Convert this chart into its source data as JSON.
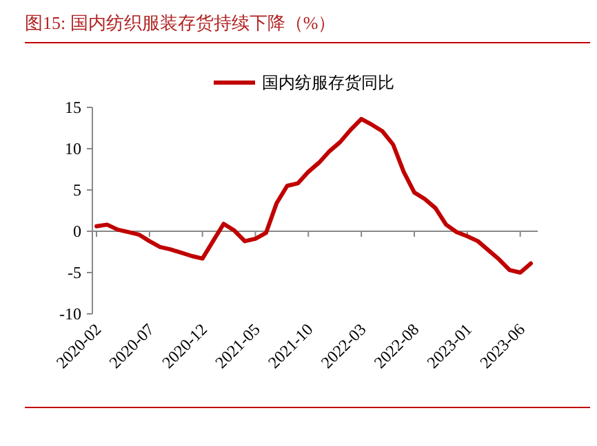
{
  "chart_data": {
    "type": "line",
    "title": "图15:    国内纺织服装存货持续下降（%）",
    "categories": [
      "2020-02",
      null,
      null,
      null,
      null,
      "2020-07",
      null,
      null,
      null,
      null,
      "2020-12",
      null,
      null,
      null,
      null,
      "2021-05",
      null,
      null,
      null,
      null,
      "2021-10",
      null,
      null,
      null,
      null,
      "2022-03",
      null,
      null,
      null,
      null,
      "2022-08",
      null,
      null,
      null,
      null,
      "2023-01",
      null,
      null,
      null,
      null,
      "2023-06",
      null
    ],
    "series": [
      {
        "name": "国内纺服存货同比",
        "color": "#c00000",
        "values": [
          0.6,
          0.8,
          0.2,
          -0.1,
          -0.4,
          -1.2,
          -1.9,
          -2.2,
          -2.6,
          -3.0,
          -3.3,
          -1.2,
          0.9,
          0.1,
          -1.2,
          -0.9,
          -0.2,
          3.4,
          5.5,
          5.8,
          7.2,
          8.3,
          9.7,
          10.8,
          12.3,
          13.6,
          12.9,
          12.1,
          10.5,
          7.2,
          4.7,
          3.9,
          2.8,
          0.8,
          -0.1,
          -0.6,
          -1.2,
          -2.3,
          -3.4,
          -4.7,
          -5.0,
          -3.9
        ]
      }
    ],
    "ylim": [
      -10,
      15
    ],
    "yticks": [
      -10,
      -5,
      0,
      5,
      10,
      15
    ],
    "legend": "top",
    "ref_lines": [
      {
        "axis": "y",
        "value": 0,
        "color": "#888888"
      }
    ]
  }
}
